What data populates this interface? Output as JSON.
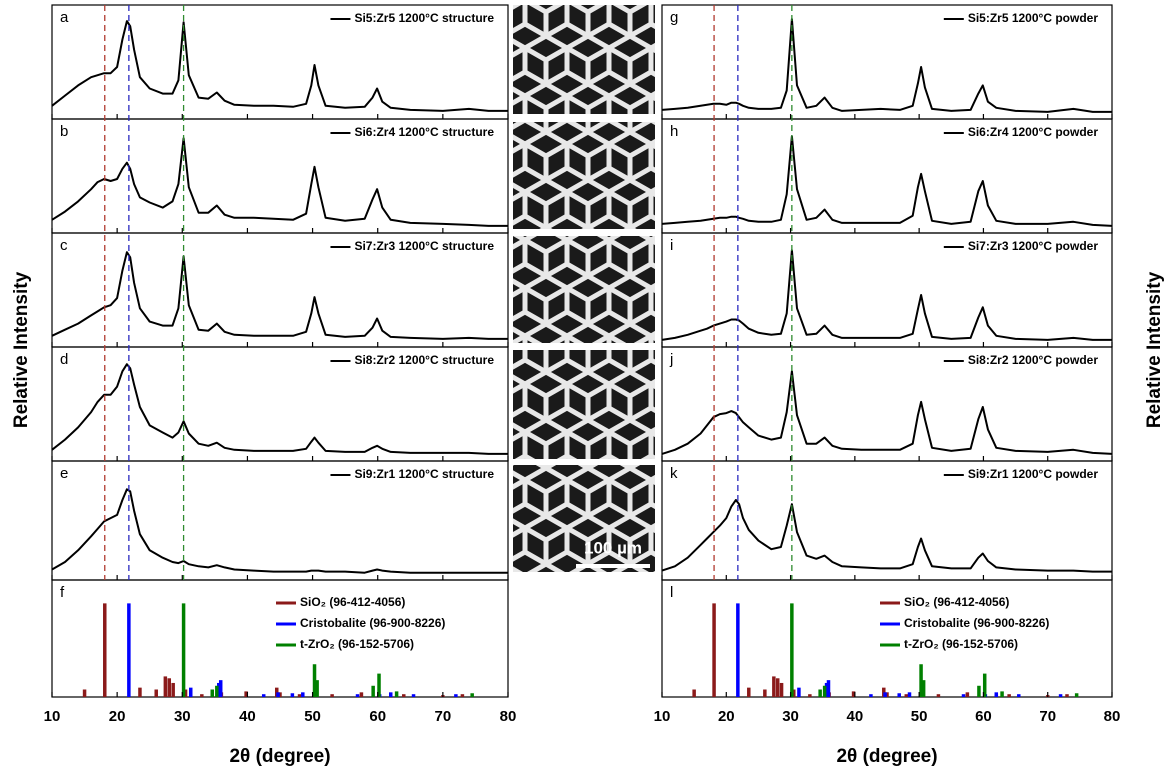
{
  "chart_data": [
    {
      "type": "line",
      "xlabel": "2θ (degree)",
      "ylabel": "Relative Intensity",
      "xlim": [
        10,
        80
      ],
      "xticks": [
        10,
        20,
        30,
        40,
        50,
        60,
        70,
        80
      ],
      "ylim": [
        0,
        100
      ],
      "x": [
        10,
        12,
        14,
        16,
        17,
        18,
        19,
        20,
        20.8,
        21.5,
        22,
        22.6,
        23.5,
        25,
        27,
        28.5,
        29.4,
        30.2,
        31,
        32.5,
        34,
        35.3,
        36.5,
        38,
        41,
        44,
        47,
        49,
        49.8,
        50.3,
        50.9,
        52,
        55,
        58,
        59.2,
        59.9,
        60.7,
        62,
        65,
        70,
        74,
        77,
        80
      ],
      "reference_lines": [
        {
          "x": 18.1,
          "color": "#b03a2e"
        },
        {
          "x": 21.8,
          "color": "#2a2ac0"
        },
        {
          "x": 30.2,
          "color": "#2e8b2e"
        }
      ],
      "series": [
        {
          "label": "a",
          "name": "Si5:Zr5 1200°C structure",
          "color": "#000000",
          "values": [
            10,
            20,
            30,
            38,
            40,
            42,
            42,
            48,
            75,
            93,
            88,
            65,
            38,
            27,
            22,
            22,
            35,
            92,
            40,
            18,
            17,
            23,
            15,
            11,
            10,
            10,
            9,
            12,
            30,
            50,
            30,
            10,
            8,
            9,
            18,
            27,
            14,
            8,
            6,
            5,
            7,
            5,
            5
          ]
        },
        {
          "label": "b",
          "name": "Si6:Zr4 1200°C structure",
          "color": "#000000",
          "values": [
            10,
            18,
            28,
            40,
            47,
            50,
            48,
            50,
            60,
            66,
            60,
            45,
            32,
            27,
            22,
            28,
            45,
            90,
            42,
            17,
            17,
            24,
            15,
            12,
            12,
            11,
            10,
            16,
            45,
            62,
            42,
            12,
            9,
            11,
            30,
            40,
            22,
            10,
            7,
            6,
            5,
            4,
            4
          ]
        },
        {
          "label": "c",
          "name": "Si7:Zr3 1200°C structure",
          "color": "#000000",
          "values": [
            8,
            14,
            20,
            28,
            32,
            36,
            38,
            45,
            72,
            90,
            85,
            60,
            35,
            22,
            18,
            18,
            35,
            86,
            38,
            14,
            13,
            20,
            12,
            9,
            8,
            8,
            8,
            12,
            30,
            46,
            30,
            9,
            7,
            8,
            16,
            25,
            13,
            7,
            6,
            5,
            6,
            5,
            5
          ]
        },
        {
          "label": "d",
          "name": "Si8:Zr2 1200°C structure",
          "color": "#000000",
          "values": [
            8,
            18,
            30,
            45,
            55,
            62,
            62,
            70,
            85,
            92,
            88,
            72,
            50,
            32,
            25,
            20,
            25,
            36,
            24,
            14,
            12,
            15,
            10,
            8,
            7,
            7,
            7,
            9,
            16,
            20,
            15,
            7,
            6,
            6,
            10,
            12,
            9,
            6,
            5,
            5,
            5,
            4,
            4
          ]
        },
        {
          "label": "e",
          "name": "Si9:Zr1 1200°C structure",
          "color": "#000000",
          "values": [
            7,
            14,
            25,
            38,
            45,
            52,
            55,
            58,
            72,
            82,
            80,
            62,
            40,
            25,
            18,
            14,
            13,
            15,
            12,
            10,
            9,
            11,
            9,
            7,
            6,
            5,
            5,
            5,
            6,
            6,
            6,
            5,
            5,
            4,
            6,
            7,
            6,
            5,
            4,
            4,
            4,
            4,
            4
          ]
        }
      ],
      "reference": {
        "label": "f",
        "ylim": [
          0,
          125
        ],
        "series": [
          {
            "name": "SiO₂ (96-412-4056)",
            "color": "#8b1a1a",
            "x": [
              15,
              18.1,
              23.5,
              26,
              27.4,
              28,
              28.6,
              30.5,
              33,
              36,
              39.8,
              44.5,
              45,
              48,
              53,
              57.5,
              62,
              64,
              70,
              73
            ],
            "values": [
              8,
              100,
              10,
              8,
              22,
              20,
              15,
              8,
              3,
              5,
              6,
              10,
              5,
              3,
              3,
              5,
              3,
              3,
              2,
              3
            ]
          },
          {
            "name": "Cristobalite (96-900-8226)",
            "color": "#0000ff",
            "x": [
              21.8,
              31.3,
              35.6,
              35.9,
              42.5,
              44.7,
              46.9,
              48.5,
              56.9,
              60.3,
              62,
              65.5,
              72
            ],
            "values": [
              100,
              10,
              15,
              18,
              3,
              5,
              4,
              5,
              3,
              3,
              5,
              3,
              3
            ]
          },
          {
            "name": "t-ZrO₂ (96-152-5706)",
            "color": "#008000",
            "x": [
              30.2,
              34.6,
              35.3,
              50.3,
              50.7,
              59.3,
              60.2,
              62.9,
              74.5
            ],
            "values": [
              100,
              8,
              12,
              35,
              18,
              12,
              25,
              6,
              4
            ]
          }
        ]
      }
    },
    {
      "type": "line",
      "xlabel": "2θ (degree)",
      "ylabel": "Relative Intensity",
      "xlim": [
        10,
        80
      ],
      "xticks": [
        10,
        20,
        30,
        40,
        50,
        60,
        70,
        80
      ],
      "ylim": [
        0,
        100
      ],
      "x": [
        10,
        12,
        14,
        16,
        17,
        18,
        19,
        20,
        20.8,
        21.5,
        22,
        22.6,
        23.5,
        25,
        27,
        28.5,
        29.4,
        30.2,
        31,
        32.5,
        34,
        35.3,
        36.5,
        38,
        41,
        44,
        47,
        49,
        49.8,
        50.3,
        50.9,
        52,
        55,
        58,
        59.2,
        59.9,
        60.7,
        62,
        65,
        70,
        74,
        77,
        80
      ],
      "reference_lines": [
        {
          "x": 18.1,
          "color": "#b03a2e"
        },
        {
          "x": 21.8,
          "color": "#2a2ac0"
        },
        {
          "x": 30.2,
          "color": "#2e8b2e"
        }
      ],
      "series": [
        {
          "label": "g",
          "name": "Si5:Zr5 1200°C powder",
          "color": "#000000",
          "values": [
            6,
            7,
            8,
            10,
            11,
            12,
            12,
            11,
            13,
            13,
            12,
            10,
            8,
            7,
            7,
            8,
            25,
            95,
            30,
            8,
            10,
            18,
            8,
            5,
            6,
            7,
            6,
            10,
            32,
            48,
            28,
            7,
            5,
            6,
            22,
            30,
            14,
            8,
            5,
            4,
            7,
            4,
            4
          ]
        },
        {
          "label": "h",
          "name": "Si6:Zr4 1200°C powder",
          "color": "#000000",
          "values": [
            6,
            7,
            8,
            9,
            10,
            11,
            12,
            12,
            13,
            13,
            12,
            11,
            9,
            8,
            8,
            10,
            35,
            92,
            40,
            10,
            12,
            20,
            10,
            7,
            7,
            7,
            7,
            14,
            42,
            55,
            38,
            9,
            6,
            8,
            38,
            48,
            24,
            9,
            6,
            6,
            8,
            5,
            4
          ]
        },
        {
          "label": "i",
          "name": "Si7:Zr3 1200°C powder",
          "color": "#000000",
          "values": [
            4,
            6,
            9,
            13,
            15,
            18,
            20,
            22,
            24,
            24,
            23,
            20,
            15,
            11,
            9,
            10,
            30,
            92,
            35,
            9,
            10,
            18,
            9,
            6,
            6,
            6,
            6,
            10,
            34,
            48,
            30,
            7,
            5,
            6,
            26,
            36,
            18,
            8,
            5,
            4,
            6,
            4,
            4
          ]
        },
        {
          "label": "j",
          "name": "Si8:Zr2 1200°C powder",
          "color": "#000000",
          "values": [
            4,
            8,
            14,
            24,
            32,
            40,
            43,
            44,
            46,
            44,
            40,
            35,
            30,
            22,
            18,
            20,
            45,
            85,
            42,
            14,
            14,
            20,
            12,
            9,
            8,
            8,
            8,
            14,
            42,
            55,
            38,
            10,
            7,
            9,
            38,
            50,
            28,
            10,
            7,
            6,
            8,
            5,
            4
          ]
        },
        {
          "label": "k",
          "name": "Si9:Zr1 1200°C powder",
          "color": "#000000",
          "values": [
            6,
            10,
            18,
            30,
            36,
            42,
            48,
            55,
            66,
            72,
            68,
            55,
            44,
            34,
            26,
            28,
            48,
            68,
            42,
            20,
            17,
            20,
            14,
            10,
            9,
            8,
            8,
            12,
            28,
            36,
            25,
            10,
            8,
            8,
            18,
            22,
            15,
            9,
            7,
            6,
            6,
            5,
            5
          ]
        }
      ],
      "reference": {
        "label": "l",
        "ylim": [
          0,
          125
        ],
        "series": [
          {
            "name": "SiO₂ (96-412-4056)",
            "color": "#8b1a1a",
            "x": [
              15,
              18.1,
              23.5,
              26,
              27.4,
              28,
              28.6,
              30.5,
              33,
              36,
              39.8,
              44.5,
              45,
              48,
              53,
              57.5,
              62,
              64,
              70,
              73
            ],
            "values": [
              8,
              100,
              10,
              8,
              22,
              20,
              15,
              8,
              3,
              5,
              6,
              10,
              5,
              3,
              3,
              5,
              3,
              3,
              2,
              3
            ]
          },
          {
            "name": "Cristobalite (96-900-8226)",
            "color": "#0000ff",
            "x": [
              21.8,
              31.3,
              35.6,
              35.9,
              42.5,
              44.7,
              46.9,
              48.5,
              56.9,
              60.3,
              62,
              65.5,
              72
            ],
            "values": [
              100,
              10,
              15,
              18,
              3,
              5,
              4,
              5,
              3,
              3,
              5,
              3,
              3
            ]
          },
          {
            "name": "t-ZrO₂ (96-152-5706)",
            "color": "#008000",
            "x": [
              30.2,
              34.6,
              35.3,
              50.3,
              50.7,
              59.3,
              60.2,
              62.9,
              74.5
            ],
            "values": [
              100,
              8,
              12,
              35,
              18,
              12,
              25,
              6,
              4
            ]
          }
        ]
      }
    }
  ],
  "images": {
    "scale_bar": "100 µm"
  }
}
